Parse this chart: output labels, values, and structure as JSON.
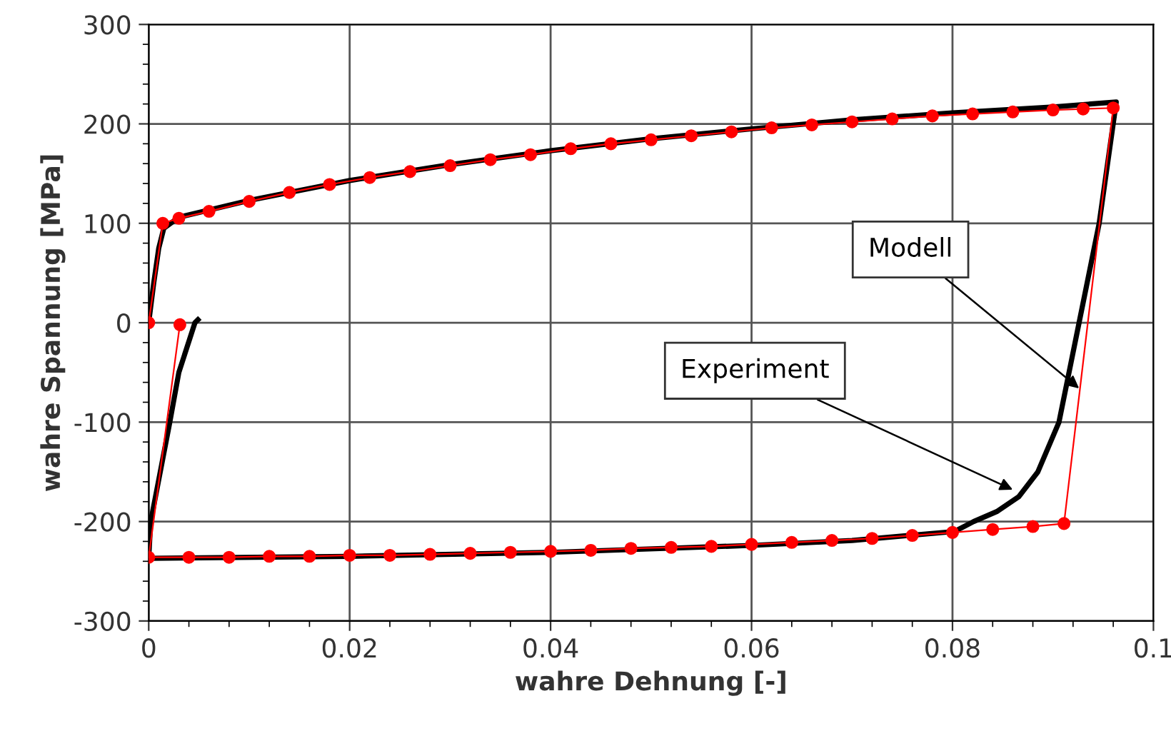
{
  "chart_data": {
    "type": "line",
    "xlabel": "wahre Dehnung [-]",
    "ylabel": "wahre Spannung [MPa]",
    "xlim": [
      0,
      0.1
    ],
    "xticks": [
      0,
      0.02,
      0.04,
      0.06,
      0.08,
      0.1
    ],
    "ylim": [
      -300,
      300
    ],
    "yticks": [
      -300,
      -200,
      -100,
      0,
      100,
      200,
      300
    ],
    "grid": true,
    "series": [
      {
        "color": "#000000",
        "marker": "none",
        "x": [
          0,
          0.0005,
          0.001,
          0.0015,
          0.003,
          0.01,
          0.02,
          0.03,
          0.04,
          0.05,
          0.06,
          0.07,
          0.08,
          0.09,
          0.0963,
          0.0946,
          0.0926,
          0.0906,
          0.0885,
          0.0866,
          0.0844,
          0.0821,
          0.0802,
          0.07,
          0.06,
          0.04,
          0.02,
          0,
          0.0002,
          0.0021,
          0.003,
          0.0046,
          0.0049
        ],
        "values": [
          0,
          40,
          75,
          95,
          106,
          123,
          143,
          159,
          173,
          185,
          195,
          204,
          211,
          217,
          222,
          100,
          0,
          -100,
          -150,
          -175,
          -190,
          -200,
          -210,
          -219,
          -224,
          -231,
          -235,
          -237,
          -200,
          -100,
          -50,
          0,
          3
        ]
      },
      {
        "color": "#ff0000",
        "marker": "circle",
        "x": [
          0,
          0.0014,
          0.003,
          0.006,
          0.01,
          0.014,
          0.018,
          0.022,
          0.026,
          0.03,
          0.034,
          0.038,
          0.042,
          0.046,
          0.05,
          0.054,
          0.058,
          0.062,
          0.066,
          0.07,
          0.074,
          0.078,
          0.082,
          0.086,
          0.09,
          0.093,
          0.096,
          0.0911,
          0.088,
          0.084,
          0.08,
          0.076,
          0.072,
          0.068,
          0.064,
          0.06,
          0.056,
          0.052,
          0.048,
          0.044,
          0.04,
          0.036,
          0.032,
          0.028,
          0.024,
          0.02,
          0.016,
          0.012,
          0.008,
          0.004,
          0,
          0.0031
        ],
        "values": [
          0,
          100,
          105,
          112,
          122,
          131,
          139,
          146,
          152,
          158,
          164,
          169,
          175,
          180,
          184,
          188,
          192,
          196,
          199,
          202,
          205,
          208,
          210,
          212,
          214,
          215,
          216,
          -202,
          -205,
          -208,
          -211,
          -214,
          -217,
          -219,
          -221,
          -223,
          -225,
          -226,
          -227,
          -229,
          -230,
          -231,
          -232,
          -233,
          -234,
          -234,
          -235,
          -235,
          -236,
          -236,
          -236,
          -2
        ]
      }
    ],
    "annotations": [
      {
        "text": "Modell",
        "x": 0.0926,
        "y": -66
      },
      {
        "text": "Experiment",
        "x": 0.086,
        "y": -168
      }
    ]
  }
}
